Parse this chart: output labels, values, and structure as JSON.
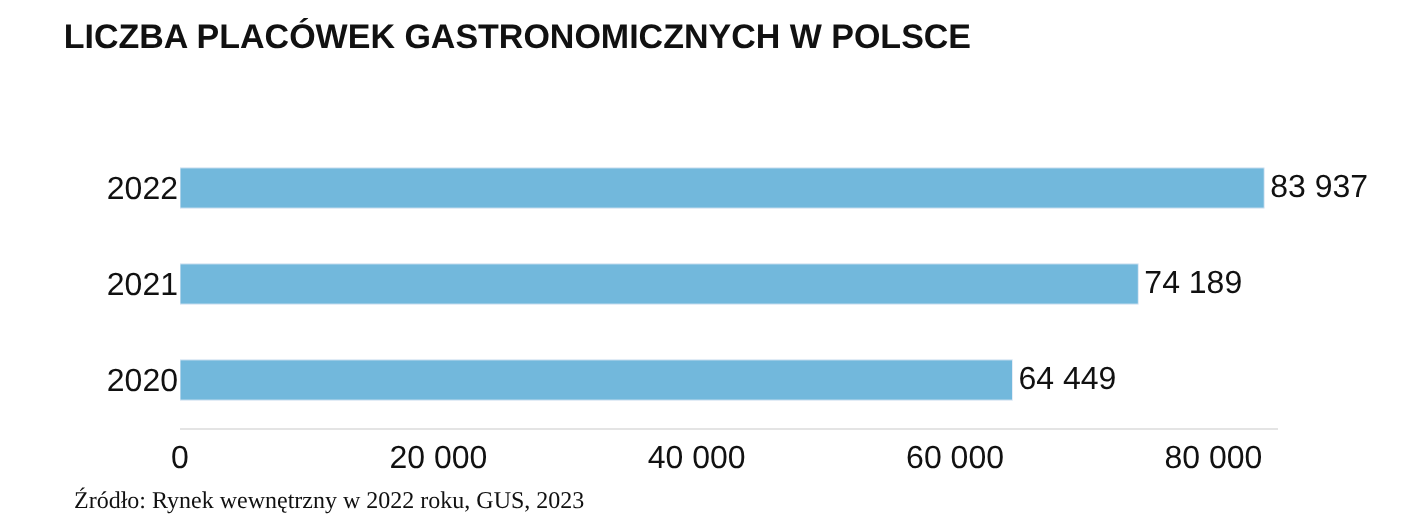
{
  "chart_data": {
    "type": "bar",
    "orientation": "horizontal",
    "title": "LICZBA PLACÓWEK GASTRONOMICZNYCH W POLSCE",
    "categories": [
      "2022",
      "2021",
      "2020"
    ],
    "values": [
      83937,
      74189,
      64449
    ],
    "value_labels": [
      "83 937",
      "74 189",
      "64 449"
    ],
    "color": "#72b8dc",
    "xlim": [
      0,
      85000
    ],
    "xticks": [
      0,
      {
        "value": 20000,
        "label": "20 000"
      },
      {
        "value": 40000,
        "label": "40 000"
      },
      {
        "value": 60000,
        "label": "60 000"
      },
      {
        "value": 80000,
        "label": "80 000"
      }
    ],
    "annotations": [
      "Źródło: Rynek wewnętrzny w 2022 roku, GUS, 2023"
    ]
  }
}
